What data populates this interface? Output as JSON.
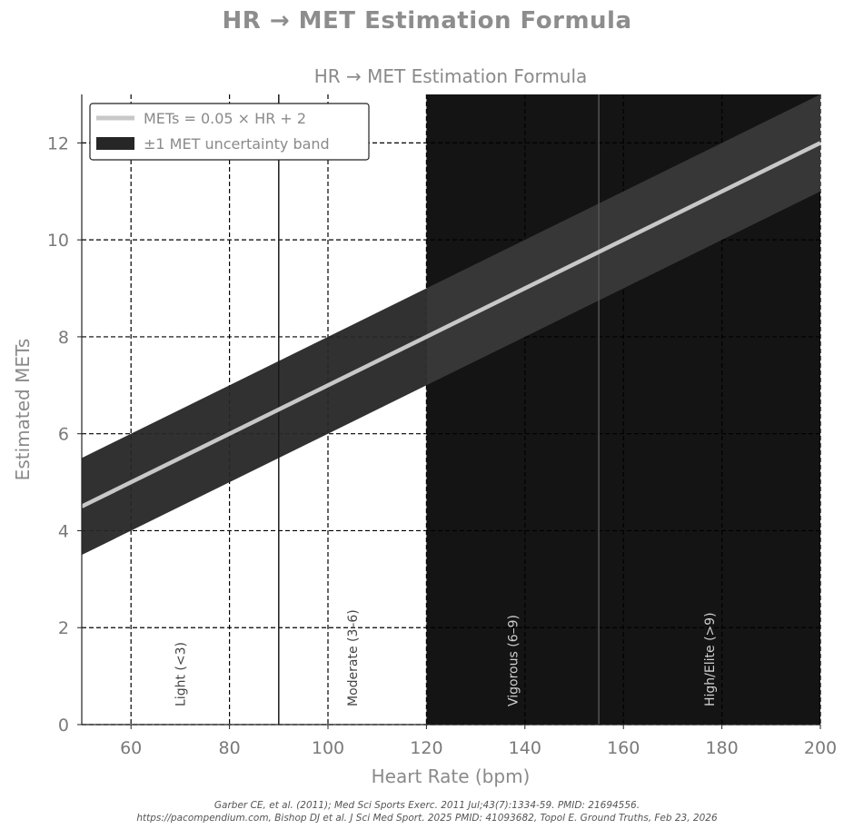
{
  "suptitle": "HR → MET Estimation Formula",
  "footer": {
    "line1": "Garber CE, et al. (2011);  Med Sci Sports Exerc. 2011 Jul;43(7):1334-59. PMID: 21694556.",
    "line2": "https://pacompendium.com, Bishop DJ et al. J Sci Med Sport. 2025 PMID: 41093682, Topol E. Ground Truths, Feb 23, 2026"
  },
  "colors": {
    "line": "#c8c8c8",
    "band": "#262626",
    "dark_zone": "#141414",
    "axis_text": "#7a7a7a"
  },
  "chart_data": {
    "type": "line",
    "title": "HR → MET Estimation Formula",
    "xlabel": "Heart Rate (bpm)",
    "ylabel": "Estimated METs",
    "xlim": [
      50,
      200
    ],
    "ylim": [
      0,
      13
    ],
    "xticks": [
      60,
      80,
      100,
      120,
      140,
      160,
      180,
      200
    ],
    "yticks": [
      0,
      2,
      4,
      6,
      8,
      10,
      12
    ],
    "grid": true,
    "legend_position": "top-left",
    "series": [
      {
        "name": "METs = 0.05 × HR + 2",
        "x": [
          50,
          200
        ],
        "y": [
          4.5,
          12
        ],
        "style": "line"
      },
      {
        "name": "±1 MET uncertainty band",
        "x": [
          50,
          200
        ],
        "y_lower": [
          3.5,
          11
        ],
        "y_upper": [
          5.5,
          13
        ],
        "style": "band"
      }
    ],
    "shaded_regions": [
      {
        "x0": 120,
        "x1": 200,
        "shade": "dark"
      }
    ],
    "vertical_lines": [
      90,
      155
    ],
    "zones": [
      {
        "label": "Light (<3)",
        "x": 70
      },
      {
        "label": "Moderate (3–6)",
        "x": 105
      },
      {
        "label": "Vigorous (6–9)",
        "x": 137.5
      },
      {
        "label": "High/Elite (>9)",
        "x": 177.5
      }
    ]
  }
}
